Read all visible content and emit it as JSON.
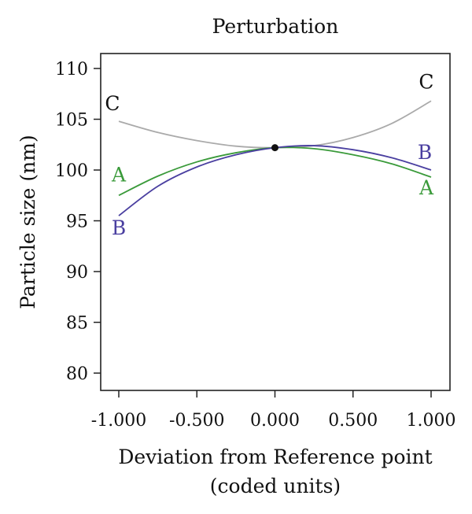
{
  "chart_data": {
    "type": "line",
    "title": "Perturbation",
    "xlabel_lines": [
      "Deviation from Reference point",
      "(coded units)"
    ],
    "ylabel": "Particle size (nm)",
    "xlim": [
      -1.0,
      1.0
    ],
    "ylim": [
      80,
      110
    ],
    "x_ticks": [
      -1.0,
      -0.5,
      0.0,
      0.5,
      1.0
    ],
    "x_tick_labels": [
      "-1.000",
      "-0.500",
      "0.000",
      "0.500",
      "1.000"
    ],
    "y_ticks": [
      80,
      85,
      90,
      95,
      100,
      105,
      110
    ],
    "y_tick_labels": [
      "80",
      "85",
      "90",
      "95",
      "100",
      "105",
      "110"
    ],
    "grid": false,
    "reference_point": {
      "x": 0.0,
      "y": 102.2
    },
    "series": [
      {
        "name": "C",
        "color": "#aaaaaa",
        "x": [
          -1.0,
          -0.75,
          -0.5,
          -0.25,
          0.0,
          0.25,
          0.5,
          0.75,
          1.0
        ],
        "y": [
          104.8,
          103.7,
          102.9,
          102.35,
          102.2,
          102.4,
          103.2,
          104.6,
          106.8
        ],
        "start_label": "C",
        "end_label": "C"
      },
      {
        "name": "A",
        "color": "#3a9a3a",
        "x": [
          -1.0,
          -0.75,
          -0.5,
          -0.25,
          0.0,
          0.25,
          0.5,
          0.75,
          1.0
        ],
        "y": [
          97.5,
          99.4,
          100.8,
          101.7,
          102.2,
          102.1,
          101.5,
          100.6,
          99.3
        ],
        "start_label": "A",
        "end_label": "A"
      },
      {
        "name": "B",
        "color": "#4a3fa0",
        "x": [
          -1.0,
          -0.75,
          -0.5,
          -0.25,
          0.0,
          0.25,
          0.5,
          0.75,
          1.0
        ],
        "y": [
          95.5,
          98.4,
          100.3,
          101.5,
          102.2,
          102.4,
          102.0,
          101.2,
          100.0
        ],
        "start_label": "B",
        "end_label": "B"
      }
    ]
  }
}
